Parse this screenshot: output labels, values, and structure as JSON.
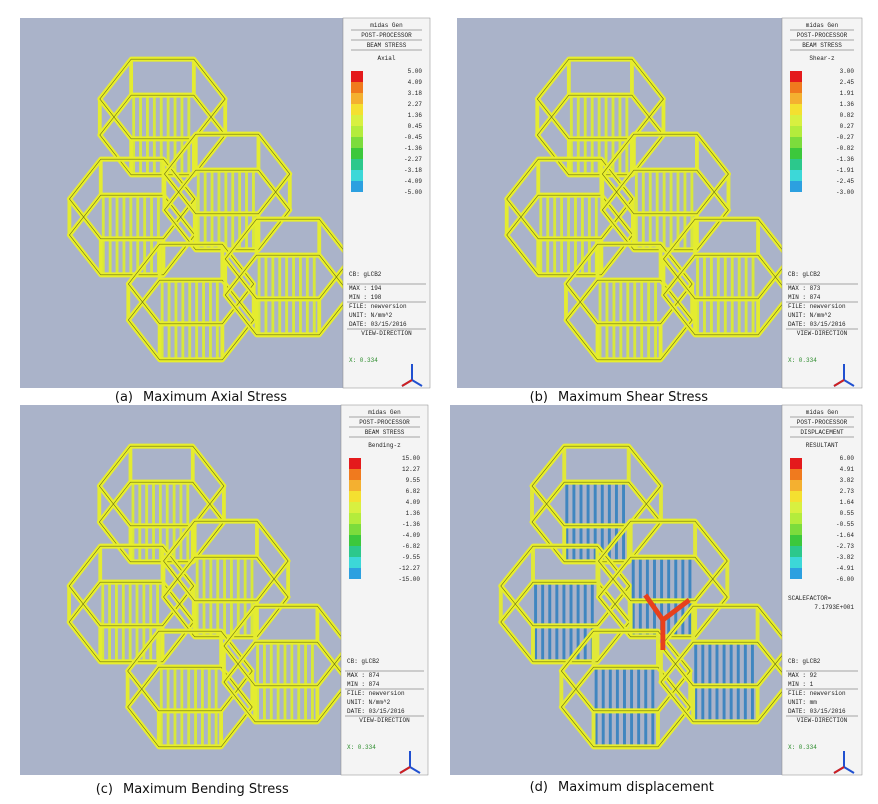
{
  "panels": [
    {
      "header": [
        "midas Gen",
        "POST-PROCESSOR",
        "BEAM STRESS"
      ],
      "component": "Axial",
      "scale": [
        "5.00",
        "4.09",
        "3.18",
        "2.27",
        "1.36",
        "0.45",
        "-0.45",
        "-1.36",
        "-2.27",
        "-3.18",
        "-4.09",
        "-5.00"
      ],
      "extra": [],
      "info": [
        "CB: gLCB2",
        "MAX : 194",
        "MIN : 198",
        "FILE: newversion",
        "UNIT: N/mm^2",
        "DATE: 03/15/2016",
        "VIEW-DIRECTION"
      ],
      "view": "X: 0.334",
      "caption_label": "(a)",
      "caption": "Maximum Axial Stress"
    },
    {
      "header": [
        "midas Gen",
        "POST-PROCESSOR",
        "BEAM STRESS"
      ],
      "component": "Shear-z",
      "scale": [
        "3.00",
        "2.45",
        "1.91",
        "1.36",
        "0.82",
        "0.27",
        "-0.27",
        "-0.82",
        "-1.36",
        "-1.91",
        "-2.45",
        "-3.00"
      ],
      "extra": [],
      "info": [
        "CB: gLCB2",
        "MAX : 873",
        "MIN : 874",
        "FILE: newversion",
        "UNIT: N/mm^2",
        "DATE: 03/15/2016",
        "VIEW-DIRECTION"
      ],
      "view": "X: 0.334",
      "caption_label": "(b)",
      "caption": "Maximum Shear Stress"
    },
    {
      "header": [
        "midas Gen",
        "POST-PROCESSOR",
        "BEAM STRESS"
      ],
      "component": "Bending-z",
      "scale": [
        "15.00",
        "12.27",
        "9.55",
        "6.82",
        "4.09",
        "1.36",
        "-1.36",
        "-4.09",
        "-6.82",
        "-9.55",
        "-12.27",
        "-15.00"
      ],
      "extra": [],
      "info": [
        "CB: gLCB2",
        "MAX : 874",
        "MIN : 874",
        "FILE: newversion",
        "UNIT: N/mm^2",
        "DATE: 03/15/2016",
        "VIEW-DIRECTION"
      ],
      "view": "X: 0.334",
      "caption_label": "(c)",
      "caption": "Maximum Bending Stress"
    },
    {
      "header": [
        "midas Gen",
        "POST-PROCESSOR",
        "DISPLACEMENT"
      ],
      "component": "RESULTANT",
      "scale": [
        "6.00",
        "4.91",
        "3.82",
        "2.73",
        "1.64",
        "0.55",
        "-0.55",
        "-1.64",
        "-2.73",
        "-3.82",
        "-4.91",
        "-6.00"
      ],
      "extra": [
        "SCALEFACTOR=",
        "7.1793E+001"
      ],
      "info": [
        "CB: gLCB2",
        "MAX : 92",
        "MIN : 1",
        "FILE: newversion",
        "UNIT: mm",
        "DATE: 03/15/2016",
        "VIEW-DIRECTION"
      ],
      "view": "X: 0.334",
      "caption_label": "(d)",
      "caption": "Maximum displacement"
    }
  ]
}
